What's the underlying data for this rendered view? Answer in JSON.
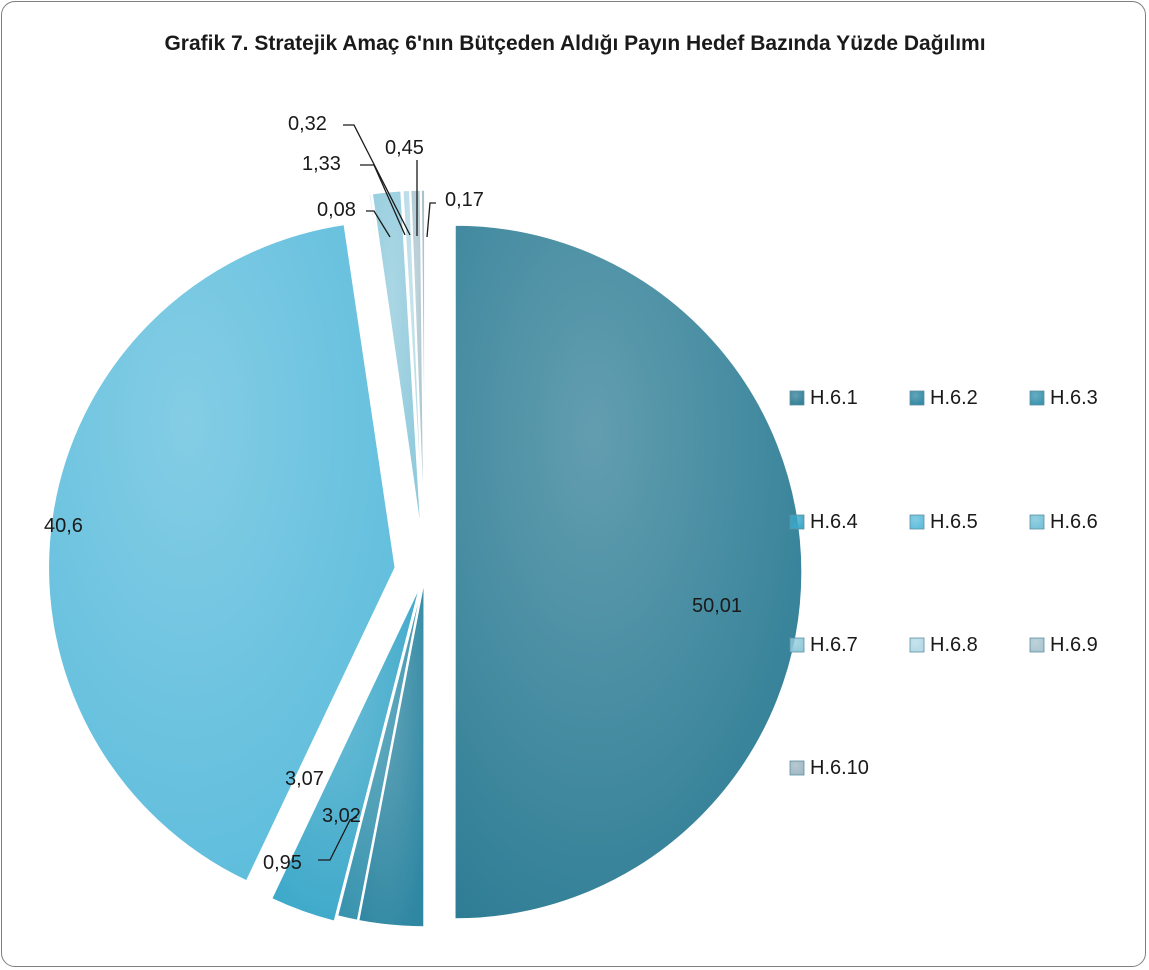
{
  "chart_data": {
    "type": "pie",
    "title": "Grafik 7. Stratejik Amaç 6'nın Bütçeden Aldığı Payın Hedef Bazında Yüzde Dağılımı",
    "categories": [
      "H.6.1",
      "H.6.2",
      "H.6.3",
      "H.6.4",
      "H.6.5",
      "H.6.6",
      "H.6.7",
      "H.6.8",
      "H.6.9",
      "H.6.10"
    ],
    "values": [
      50.01,
      3.02,
      0.95,
      3.07,
      40.6,
      0.08,
      1.33,
      0.32,
      0.45,
      0.17
    ],
    "value_labels": [
      "50,01",
      "3,02",
      "0,95",
      "3,07",
      "40,6",
      "0,08",
      "1,33",
      "0,32",
      "0,45",
      "0,17"
    ],
    "colors": [
      "#2e7d95",
      "#2f87a2",
      "#3692ad",
      "#3aa7c9",
      "#5bbcdc",
      "#74c1d8",
      "#8ec9db",
      "#b3d9e6",
      "#a9c4ce",
      "#9fb7c3"
    ],
    "legend_position": "right",
    "exploded": true
  }
}
